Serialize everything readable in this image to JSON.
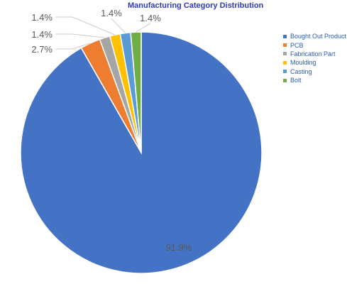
{
  "chart_data": {
    "type": "pie",
    "title": "Manufacturing Category Distribution",
    "slices": [
      {
        "name": "Bought Out Product",
        "value": 91.9,
        "label": "91.9%",
        "color": "#4472c4"
      },
      {
        "name": "PCB",
        "value": 2.7,
        "label": "2.7%",
        "color": "#ed7d31"
      },
      {
        "name": "Fabrication Part",
        "value": 1.4,
        "label": "1.4%",
        "color": "#a5a5a5"
      },
      {
        "name": "Moulding",
        "value": 1.4,
        "label": "1.4%",
        "color": "#ffc000"
      },
      {
        "name": "Casting",
        "value": 1.4,
        "label": "1.4%",
        "color": "#5b9bd5"
      },
      {
        "name": "Bolt",
        "value": 1.4,
        "label": "1.4%",
        "color": "#70ad47"
      }
    ],
    "legend_position": "right"
  }
}
